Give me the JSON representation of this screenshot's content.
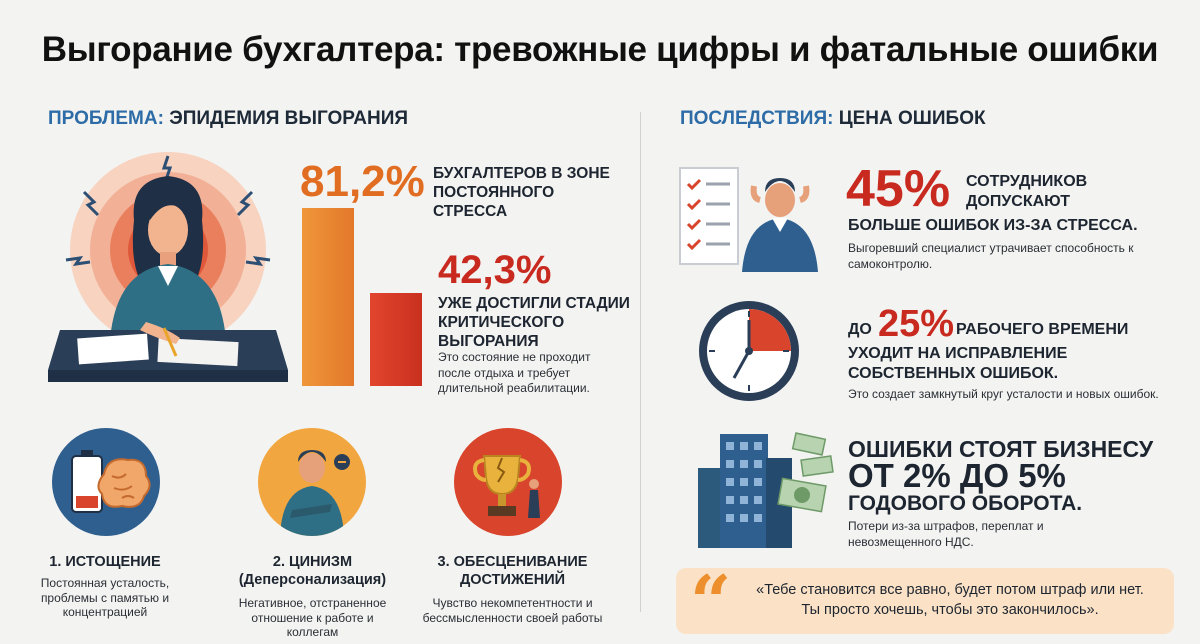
{
  "title": "Выгорание бухгалтера: тревожные цифры и фатальные ошибки",
  "left": {
    "head_accent": "ПРОБЛЕМА:",
    "head_rest": "ЭПИДЕМИЯ ВЫГОРАНИЯ",
    "stat1": {
      "value": "81,2%",
      "text": "БУХГАЛТЕРОВ В ЗОНЕ ПОСТОЯННОГО СТРЕССА",
      "bar_fraction": 0.812
    },
    "stat2": {
      "value": "42,3%",
      "text": "УЖЕ ДОСТИГЛИ СТАДИИ КРИТИЧЕСКОГО ВЫГОРАНИЯ",
      "sub": "Это состояние не проходит после отдыха и требует длительной реабилитации.",
      "bar_fraction": 0.423
    },
    "stages": [
      {
        "title": "1. ИСТОЩЕНИЕ",
        "sub": "Постоянная усталость, проблемы с памятью и концентрацией"
      },
      {
        "title": "2. ЦИНИЗМ (Деперсонализация)",
        "sub": "Негативное, отстраненное отношение к работе и коллегам"
      },
      {
        "title": "3. ОБЕСЦЕНИВАНИЕ ДОСТИЖЕНИЙ",
        "sub": "Чувство некомпетентности и бессмысленности своей работы"
      }
    ]
  },
  "right": {
    "head_accent": "ПОСЛЕДСТВИЯ:",
    "head_rest": "ЦЕНА ОШИБОК",
    "stat1": {
      "value": "45%",
      "text_a": "СОТРУДНИКОВ ДОПУСКАЮТ",
      "text_b": "БОЛЬШЕ ОШИБОК ИЗ-ЗА СТРЕССА.",
      "sub": "Выгоревший специалист утрачивает способность к самоконтролю."
    },
    "stat2": {
      "pre": "ДО",
      "value": "25%",
      "text_a": "РАБОЧЕГО ВРЕМЕНИ",
      "text_b": "УХОДИТ НА ИСПРАВЛЕНИЕ СОБСТВЕННЫХ ОШИБОК.",
      "sub": "Это создает замкнутый круг усталости и новых ошибок.",
      "clock_fraction": 0.25
    },
    "stat3": {
      "line1": "ОШИБКИ СТОЯТ БИЗНЕСУ",
      "line2": "ОТ 2% ДО 5%",
      "line3": "ГОДОВОГО ОБОРОТА.",
      "sub": "Потери из-за штрафов, переплат и невозмещенного НДС."
    },
    "quote": "«Тебе становится все равно, будет потом штраф или нет. Ты просто хочешь, чтобы это закончилось».",
    "quote_mark": "“"
  },
  "colors": {
    "orange": "#e06d21",
    "red": "#c82a1f",
    "blue": "#2d6ca6",
    "navy": "#2e5f8f"
  }
}
